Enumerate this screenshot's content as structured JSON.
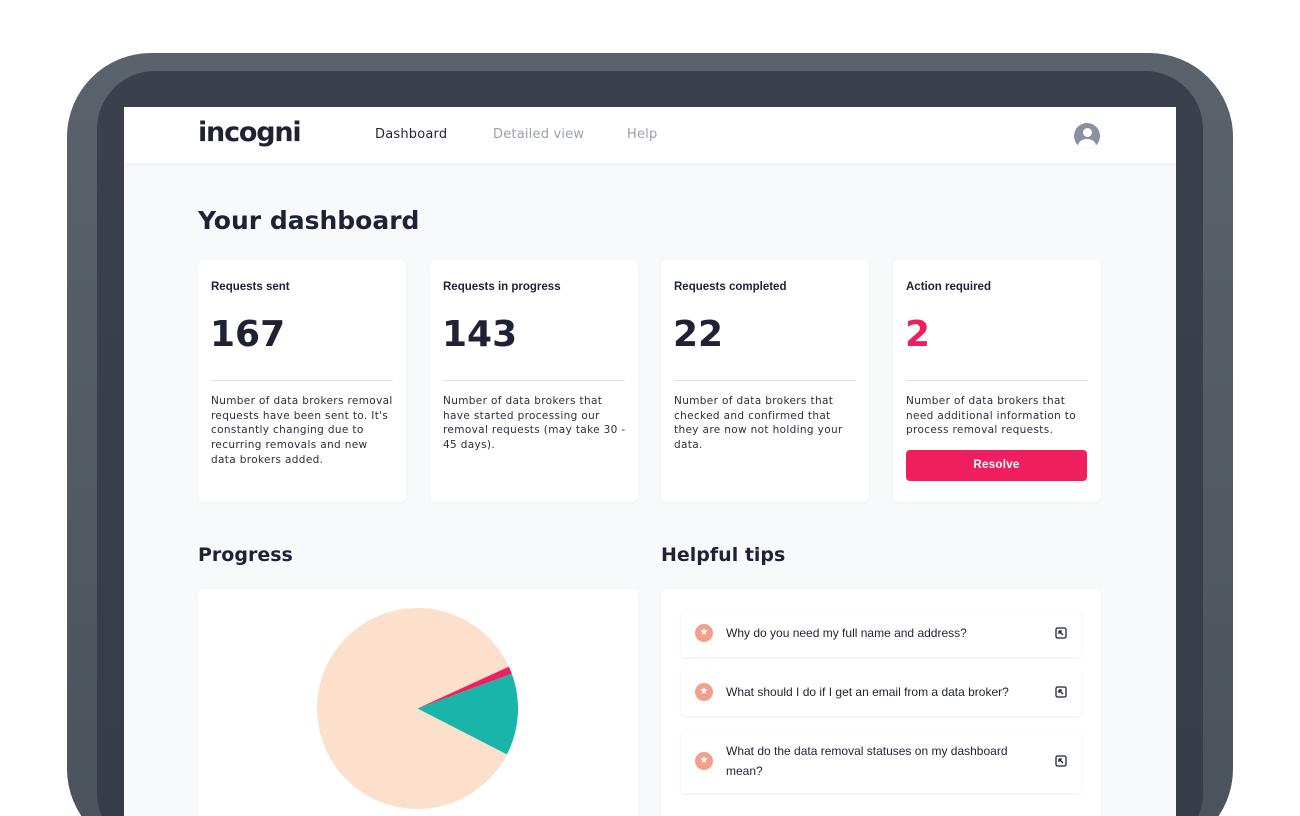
{
  "app": {
    "logo": "incogni"
  },
  "nav": {
    "items": [
      {
        "label": "Dashboard",
        "active": true
      },
      {
        "label": "Detailed view",
        "active": false
      },
      {
        "label": "Help",
        "active": false
      }
    ],
    "account_icon": "user-circle-icon"
  },
  "page": {
    "title": "Your dashboard"
  },
  "stats": [
    {
      "label": "Requests sent",
      "value": "167",
      "description": "Number of data brokers removal requests have been sent to. It's constantly changing due to recurring removals and new data brokers added."
    },
    {
      "label": "Requests in progress",
      "value": "143",
      "description": "Number of data brokers that have started processing our removal requests (may take 30 - 45 days)."
    },
    {
      "label": "Requests completed",
      "value": "22",
      "description": "Number of data brokers that checked and confirmed that they are now not holding your data."
    },
    {
      "label": "Action required",
      "value": "2",
      "description": "Number of data brokers that need additional information to process removal requests.",
      "button_label": "Resolve"
    }
  ],
  "progress": {
    "title": "Progress",
    "pie_slices": [
      {
        "value": 143,
        "color": "#fde0cb"
      },
      {
        "value": 2,
        "color": "#ef1f5f"
      },
      {
        "value": 22,
        "color": "#19b5a9"
      }
    ]
  },
  "tips": {
    "title": "Helpful tips",
    "items": [
      {
        "text": "Why do you need my full name and address?",
        "icon": "star-icon",
        "action_icon": "external-link-icon"
      },
      {
        "text": "What should I do if I get an email from a data broker?",
        "icon": "star-icon",
        "action_icon": "external-link-icon"
      },
      {
        "text": "What do the data removal statuses on my dashboard mean?",
        "icon": "star-icon",
        "action_icon": "external-link-icon"
      }
    ]
  },
  "colors": {
    "accent": "#ef1f5f",
    "text_dark": "#1f2235",
    "text_muted": "#9aa0ae",
    "pie_main": "#fde0cb",
    "pie_completed": "#19b5a9",
    "tip_icon": "#f2a08c"
  }
}
